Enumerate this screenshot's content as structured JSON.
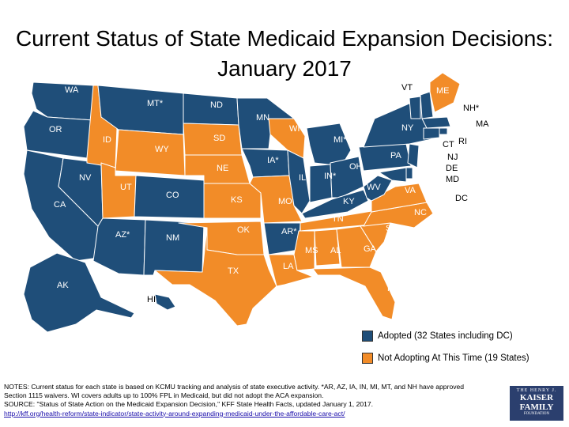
{
  "title": "Current Status of State Medicaid Expansion Decisions: January 2017",
  "colors": {
    "adopted": "#1f4e79",
    "not_adopting": "#f28c28",
    "border": "#ffffff"
  },
  "states": {
    "WA": "WA",
    "OR": "OR",
    "CA": "CA",
    "NV": "NV",
    "ID": "ID",
    "MT": "MT*",
    "WY": "WY",
    "UT": "UT",
    "CO": "CO",
    "AZ": "AZ*",
    "NM": "NM",
    "ND": "ND",
    "SD": "SD",
    "NE": "NE",
    "KS": "KS",
    "OK": "OK",
    "TX": "TX",
    "MN": "MN",
    "IA": "IA*",
    "MO": "MO",
    "AR": "AR*",
    "LA": "LA",
    "WI": "WI*",
    "IL": "IL",
    "MS": "MS",
    "MI": "MI*",
    "IN": "IN*",
    "OH": "OH",
    "KY": "KY",
    "TN": "TN",
    "AL": "AL",
    "GA": "GA",
    "FL": "FL",
    "SC": "SC",
    "NC": "NC",
    "VA": "VA",
    "WV": "WV",
    "PA": "PA",
    "NY": "NY",
    "VT": "VT",
    "ME": "ME",
    "NH": "NH*",
    "MA": "MA",
    "RI": "RI",
    "CT": "CT",
    "NJ": "NJ",
    "DE": "DE",
    "MD": "MD",
    "DC": "DC",
    "AK": "AK",
    "HI": "HI"
  },
  "legend": {
    "adopted": "Adopted (32 States including DC)",
    "not_adopting": "Not Adopting At This Time (19 States)"
  },
  "notes": {
    "line1": "NOTES: Current status for each state is based on KCMU tracking and analysis of state executive activity. *AR, AZ, IA, IN, MI, MT, and NH have approved Section 1115 waivers. WI covers adults up to 100% FPL in Medicaid, but did not adopt the ACA expansion.",
    "line2": "SOURCE: \"Status of State Action on the Medicaid Expansion Decision,\" KFF State Health Facts, updated January 1, 2017.",
    "url": "http://kff.org/health-reform/state-indicator/state-activity-around-expanding-medicaid-under-the-affordable-care-act/"
  },
  "logo": {
    "line1": "THE HENRY J.",
    "line2": "KAISER",
    "line3": "FAMILY",
    "line4": "FOUNDATION"
  }
}
